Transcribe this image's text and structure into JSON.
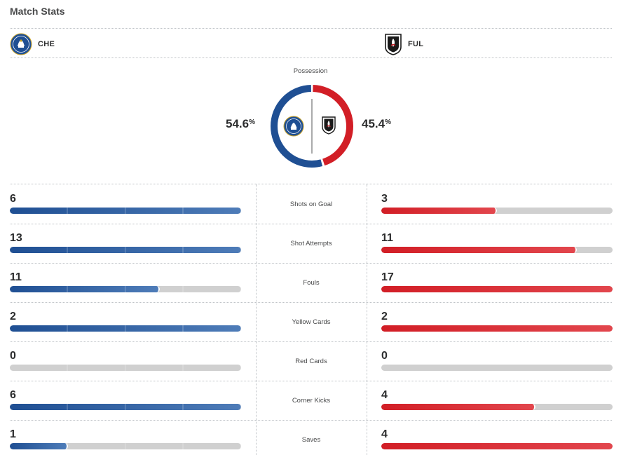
{
  "title": "Match Stats",
  "teams": {
    "home": {
      "abbr": "CHE",
      "color": "#1f4f93",
      "logo_icon": "chelsea-crest-icon"
    },
    "away": {
      "abbr": "FUL",
      "color": "#d21e26",
      "logo_icon": "fulham-crest-icon"
    }
  },
  "possession": {
    "label": "Possession",
    "home": "54.6",
    "away": "45.4",
    "home_value": 54.6,
    "away_value": 45.4,
    "unit": "%"
  },
  "stats": [
    {
      "label": "Shots on Goal",
      "home": "6",
      "away": "3",
      "home_frac": 1.0,
      "away_frac": 0.5
    },
    {
      "label": "Shot Attempts",
      "home": "13",
      "away": "11",
      "home_frac": 1.0,
      "away_frac": 0.846
    },
    {
      "label": "Fouls",
      "home": "11",
      "away": "17",
      "home_frac": 0.647,
      "away_frac": 1.0
    },
    {
      "label": "Yellow Cards",
      "home": "2",
      "away": "2",
      "home_frac": 1.0,
      "away_frac": 1.0
    },
    {
      "label": "Red Cards",
      "home": "0",
      "away": "0",
      "home_frac": 0,
      "away_frac": 0
    },
    {
      "label": "Corner Kicks",
      "home": "6",
      "away": "4",
      "home_frac": 1.0,
      "away_frac": 0.667
    },
    {
      "label": "Saves",
      "home": "1",
      "away": "4",
      "home_frac": 0.25,
      "away_frac": 1.0
    }
  ]
}
